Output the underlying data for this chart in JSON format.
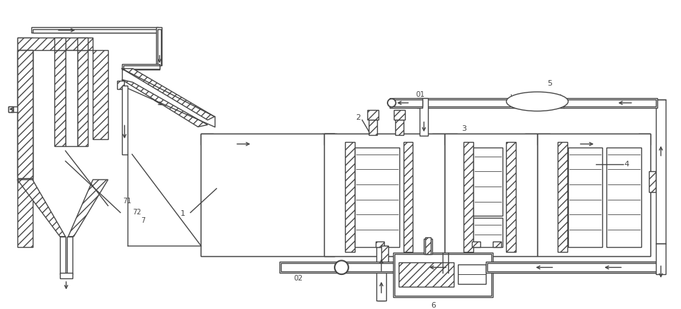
{
  "bg_color": "#ffffff",
  "lc": "#444444",
  "lw": 1.0,
  "fig_width": 9.78,
  "fig_height": 4.44,
  "dpi": 100
}
